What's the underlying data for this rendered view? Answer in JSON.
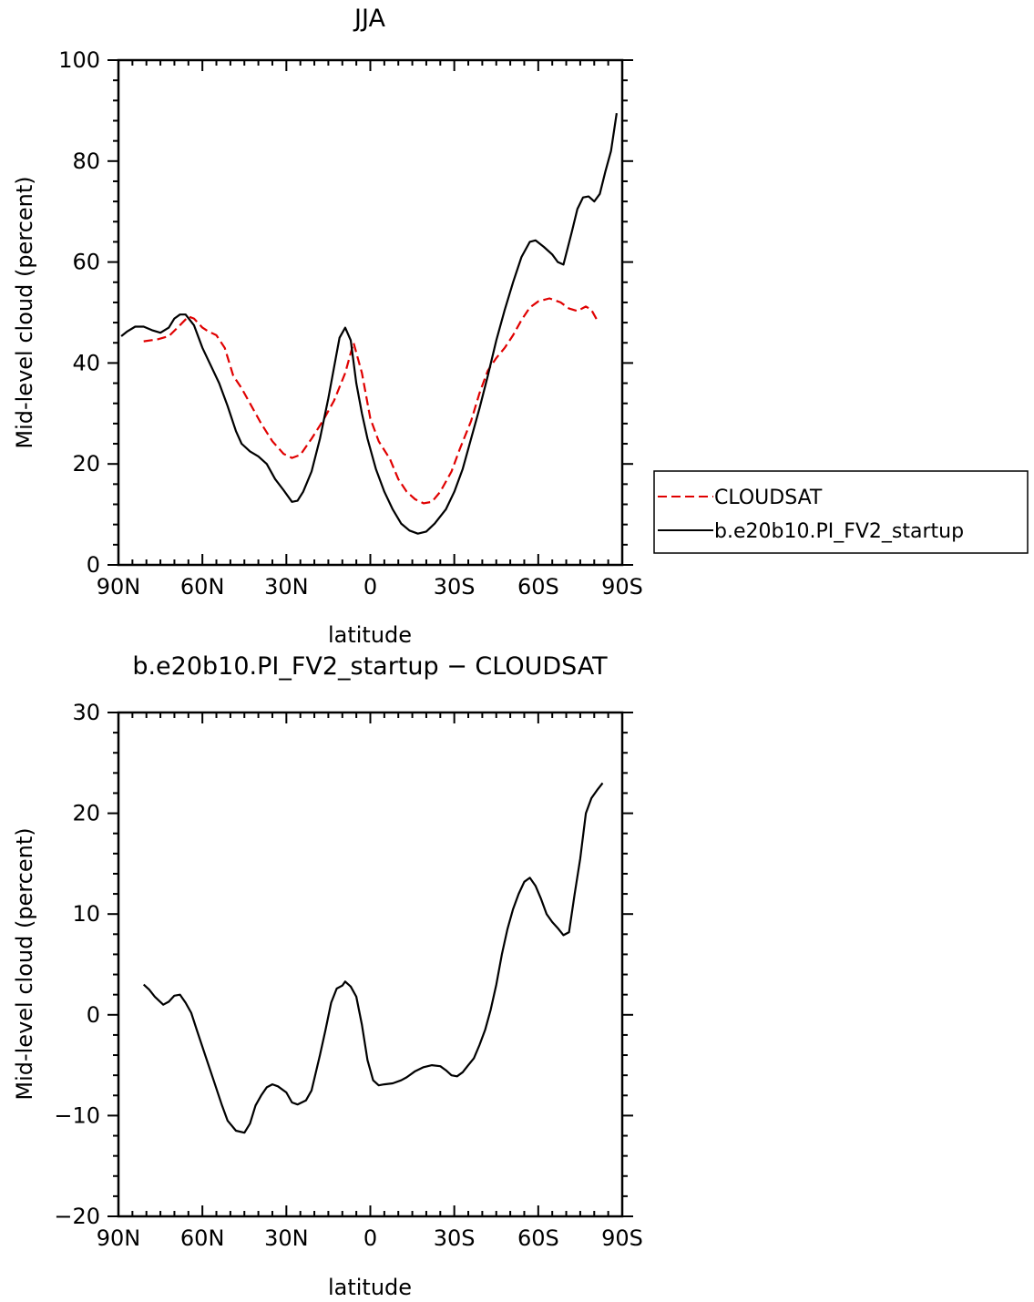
{
  "chart_data": [
    {
      "type": "line",
      "title": "JJA",
      "xlabel": "latitude",
      "ylabel": "Mid-level cloud (percent)",
      "xlim": [
        90,
        -90
      ],
      "ylim": [
        0,
        100
      ],
      "x_ticks": [
        90,
        60,
        30,
        0,
        -30,
        -60,
        -90
      ],
      "x_tick_labels": [
        "90N",
        "60N",
        "30N",
        "0",
        "30S",
        "60S",
        "90S"
      ],
      "y_ticks": [
        0,
        20,
        40,
        60,
        80,
        100
      ],
      "y_tick_labels": [
        "0",
        "20",
        "40",
        "60",
        "80",
        "100"
      ],
      "grid": false,
      "legend_position": "right",
      "series": [
        {
          "name": "CLOUDSAT",
          "color": "#e00000",
          "dash": true,
          "points": [
            [
              81,
              44.3
            ],
            [
              76,
              44.7
            ],
            [
              72,
              45.3
            ],
            [
              68,
              47.5
            ],
            [
              65,
              49.2
            ],
            [
              63,
              48.8
            ],
            [
              60,
              47.0
            ],
            [
              58,
              46.3
            ],
            [
              55,
              45.5
            ],
            [
              52,
              43.0
            ],
            [
              49,
              37.5
            ],
            [
              46,
              35.0
            ],
            [
              43,
              32.0
            ],
            [
              39,
              28.0
            ],
            [
              35,
              24.5
            ],
            [
              31,
              22.0
            ],
            [
              28,
              21.2
            ],
            [
              25,
              21.8
            ],
            [
              21,
              25.0
            ],
            [
              17,
              28.5
            ],
            [
              13,
              32.5
            ],
            [
              9,
              38.0
            ],
            [
              6,
              44.0
            ],
            [
              3,
              38.0
            ],
            [
              0,
              29.0
            ],
            [
              -3,
              24.5
            ],
            [
              -7,
              21.0
            ],
            [
              -10,
              17.0
            ],
            [
              -13,
              14.5
            ],
            [
              -16,
              13.0
            ],
            [
              -19,
              12.2
            ],
            [
              -22,
              12.5
            ],
            [
              -25,
              14.5
            ],
            [
              -29,
              18.5
            ],
            [
              -32,
              23.0
            ],
            [
              -36,
              28.5
            ],
            [
              -39,
              34.0
            ],
            [
              -42,
              38.5
            ],
            [
              -45,
              41.0
            ],
            [
              -48,
              43.0
            ],
            [
              -51,
              45.5
            ],
            [
              -54,
              48.5
            ],
            [
              -57,
              51.0
            ],
            [
              -60,
              52.2
            ],
            [
              -64,
              52.8
            ],
            [
              -68,
              52.0
            ],
            [
              -71,
              50.8
            ],
            [
              -74,
              50.3
            ],
            [
              -77,
              51.2
            ],
            [
              -79,
              50.5
            ],
            [
              -81,
              48.5
            ]
          ]
        },
        {
          "name": "b.e20b10.PI_FV2_startup",
          "color": "#000000",
          "dash": false,
          "points": [
            [
              89,
              45.3
            ],
            [
              87,
              46.2
            ],
            [
              84,
              47.2
            ],
            [
              81,
              47.2
            ],
            [
              78,
              46.5
            ],
            [
              75,
              46.0
            ],
            [
              72,
              47.0
            ],
            [
              70,
              48.8
            ],
            [
              68,
              49.6
            ],
            [
              66,
              49.6
            ],
            [
              63,
              47.5
            ],
            [
              60,
              43.0
            ],
            [
              57,
              39.5
            ],
            [
              54,
              36.0
            ],
            [
              51,
              31.5
            ],
            [
              48,
              26.5
            ],
            [
              46,
              24.0
            ],
            [
              43,
              22.5
            ],
            [
              40,
              21.5
            ],
            [
              37,
              20.0
            ],
            [
              34,
              17.0
            ],
            [
              31,
              14.8
            ],
            [
              28,
              12.5
            ],
            [
              26,
              12.7
            ],
            [
              24,
              14.5
            ],
            [
              21,
              18.5
            ],
            [
              18,
              25.0
            ],
            [
              15,
              33.0
            ],
            [
              12,
              42.0
            ],
            [
              11,
              45.0
            ],
            [
              9,
              47.0
            ],
            [
              7,
              44.5
            ],
            [
              5,
              36.0
            ],
            [
              3,
              30.0
            ],
            [
              1,
              25.0
            ],
            [
              -2,
              19.0
            ],
            [
              -5,
              14.5
            ],
            [
              -8,
              11.0
            ],
            [
              -11,
              8.2
            ],
            [
              -14,
              6.8
            ],
            [
              -17,
              6.2
            ],
            [
              -20,
              6.6
            ],
            [
              -23,
              8.2
            ],
            [
              -27,
              11.0
            ],
            [
              -30,
              14.5
            ],
            [
              -33,
              19.0
            ],
            [
              -36,
              25.0
            ],
            [
              -39,
              31.0
            ],
            [
              -42,
              37.5
            ],
            [
              -45,
              44.5
            ],
            [
              -48,
              50.5
            ],
            [
              -51,
              56.0
            ],
            [
              -54,
              61.0
            ],
            [
              -57,
              64.0
            ],
            [
              -59,
              64.3
            ],
            [
              -62,
              63.0
            ],
            [
              -65,
              61.5
            ],
            [
              -67,
              60.0
            ],
            [
              -69,
              59.5
            ],
            [
              -72,
              66.0
            ],
            [
              -74,
              70.5
            ],
            [
              -76,
              72.8
            ],
            [
              -78,
              73.0
            ],
            [
              -80,
              72.0
            ],
            [
              -82,
              73.5
            ],
            [
              -84,
              78.0
            ],
            [
              -86,
              82.0
            ],
            [
              -88,
              89.5
            ]
          ]
        }
      ]
    },
    {
      "type": "line",
      "title": "b.e20b10.PI_FV2_startup − CLOUDSAT",
      "xlabel": "latitude",
      "ylabel": "Mid-level cloud (percent)",
      "xlim": [
        90,
        -90
      ],
      "ylim": [
        -20,
        30
      ],
      "x_ticks": [
        90,
        60,
        30,
        0,
        -30,
        -60,
        -90
      ],
      "x_tick_labels": [
        "90N",
        "60N",
        "30N",
        "0",
        "30S",
        "60S",
        "90S"
      ],
      "y_ticks": [
        -20,
        -10,
        0,
        10,
        20,
        30
      ],
      "y_tick_labels": [
        "−20",
        "−10",
        "0",
        "10",
        "20",
        "30"
      ],
      "grid": false,
      "series": [
        {
          "color": "#000000",
          "dash": false,
          "points": [
            [
              81,
              3.0
            ],
            [
              79,
              2.5
            ],
            [
              77,
              1.8
            ],
            [
              74,
              1.0
            ],
            [
              72,
              1.3
            ],
            [
              70,
              1.9
            ],
            [
              68,
              2.0
            ],
            [
              66,
              1.2
            ],
            [
              64,
              0.2
            ],
            [
              62,
              -1.5
            ],
            [
              59,
              -4.0
            ],
            [
              56,
              -6.5
            ],
            [
              53,
              -9.0
            ],
            [
              51,
              -10.5
            ],
            [
              48,
              -11.5
            ],
            [
              45,
              -11.7
            ],
            [
              43,
              -10.8
            ],
            [
              41,
              -9.0
            ],
            [
              39,
              -8.0
            ],
            [
              37,
              -7.2
            ],
            [
              35,
              -6.9
            ],
            [
              33,
              -7.1
            ],
            [
              30,
              -7.7
            ],
            [
              28,
              -8.7
            ],
            [
              26,
              -8.9
            ],
            [
              23,
              -8.5
            ],
            [
              21,
              -7.5
            ],
            [
              18,
              -4.0
            ],
            [
              16,
              -1.5
            ],
            [
              14,
              1.2
            ],
            [
              12,
              2.6
            ],
            [
              10,
              2.9
            ],
            [
              9,
              3.3
            ],
            [
              7,
              2.8
            ],
            [
              5,
              1.8
            ],
            [
              3,
              -1.0
            ],
            [
              1,
              -4.5
            ],
            [
              -1,
              -6.5
            ],
            [
              -3,
              -7.0
            ],
            [
              -5,
              -6.9
            ],
            [
              -8,
              -6.8
            ],
            [
              -11,
              -6.5
            ],
            [
              -13,
              -6.2
            ],
            [
              -16,
              -5.6
            ],
            [
              -19,
              -5.2
            ],
            [
              -22,
              -5.0
            ],
            [
              -25,
              -5.1
            ],
            [
              -27,
              -5.5
            ],
            [
              -29,
              -6.0
            ],
            [
              -31,
              -6.1
            ],
            [
              -33,
              -5.7
            ],
            [
              -35,
              -5.0
            ],
            [
              -37,
              -4.3
            ],
            [
              -39,
              -3.0
            ],
            [
              -41,
              -1.5
            ],
            [
              -43,
              0.5
            ],
            [
              -45,
              3.0
            ],
            [
              -47,
              6.0
            ],
            [
              -49,
              8.5
            ],
            [
              -51,
              10.5
            ],
            [
              -53,
              12.0
            ],
            [
              -55,
              13.2
            ],
            [
              -57,
              13.6
            ],
            [
              -59,
              12.8
            ],
            [
              -61,
              11.5
            ],
            [
              -63,
              10.0
            ],
            [
              -65,
              9.2
            ],
            [
              -67,
              8.6
            ],
            [
              -69,
              7.9
            ],
            [
              -71,
              8.2
            ],
            [
              -73,
              12.0
            ],
            [
              -75,
              15.5
            ],
            [
              -77,
              20.0
            ],
            [
              -79,
              21.5
            ],
            [
              -81,
              22.3
            ],
            [
              -83,
              23.0
            ]
          ]
        }
      ]
    }
  ]
}
